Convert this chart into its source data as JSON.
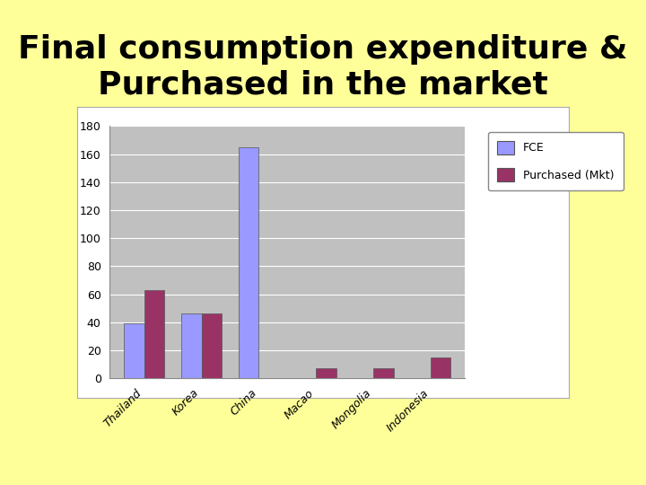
{
  "title": "Final consumption expenditure &\nPurchased in the market",
  "categories": [
    "Thailand",
    "Korea",
    "China",
    "Macao",
    "Mongolia",
    "Indonesia"
  ],
  "fce_values": [
    39,
    46,
    165,
    0,
    0,
    0
  ],
  "purchased_values": [
    63,
    46,
    0,
    7,
    7,
    15
  ],
  "fce_color": "#9999ff",
  "purchased_color": "#993366",
  "background_color": "#ffff99",
  "plot_bg_color": "#c0c0c0",
  "frame_bg_color": "#ffffff",
  "legend_labels": [
    "FCE",
    "Purchased (Mkt)"
  ],
  "ylim": [
    0,
    180
  ],
  "yticks": [
    0,
    20,
    40,
    60,
    80,
    100,
    120,
    140,
    160,
    180
  ],
  "bar_width": 0.35,
  "title_fontsize": 26,
  "tick_fontsize": 9,
  "legend_fontsize": 9
}
